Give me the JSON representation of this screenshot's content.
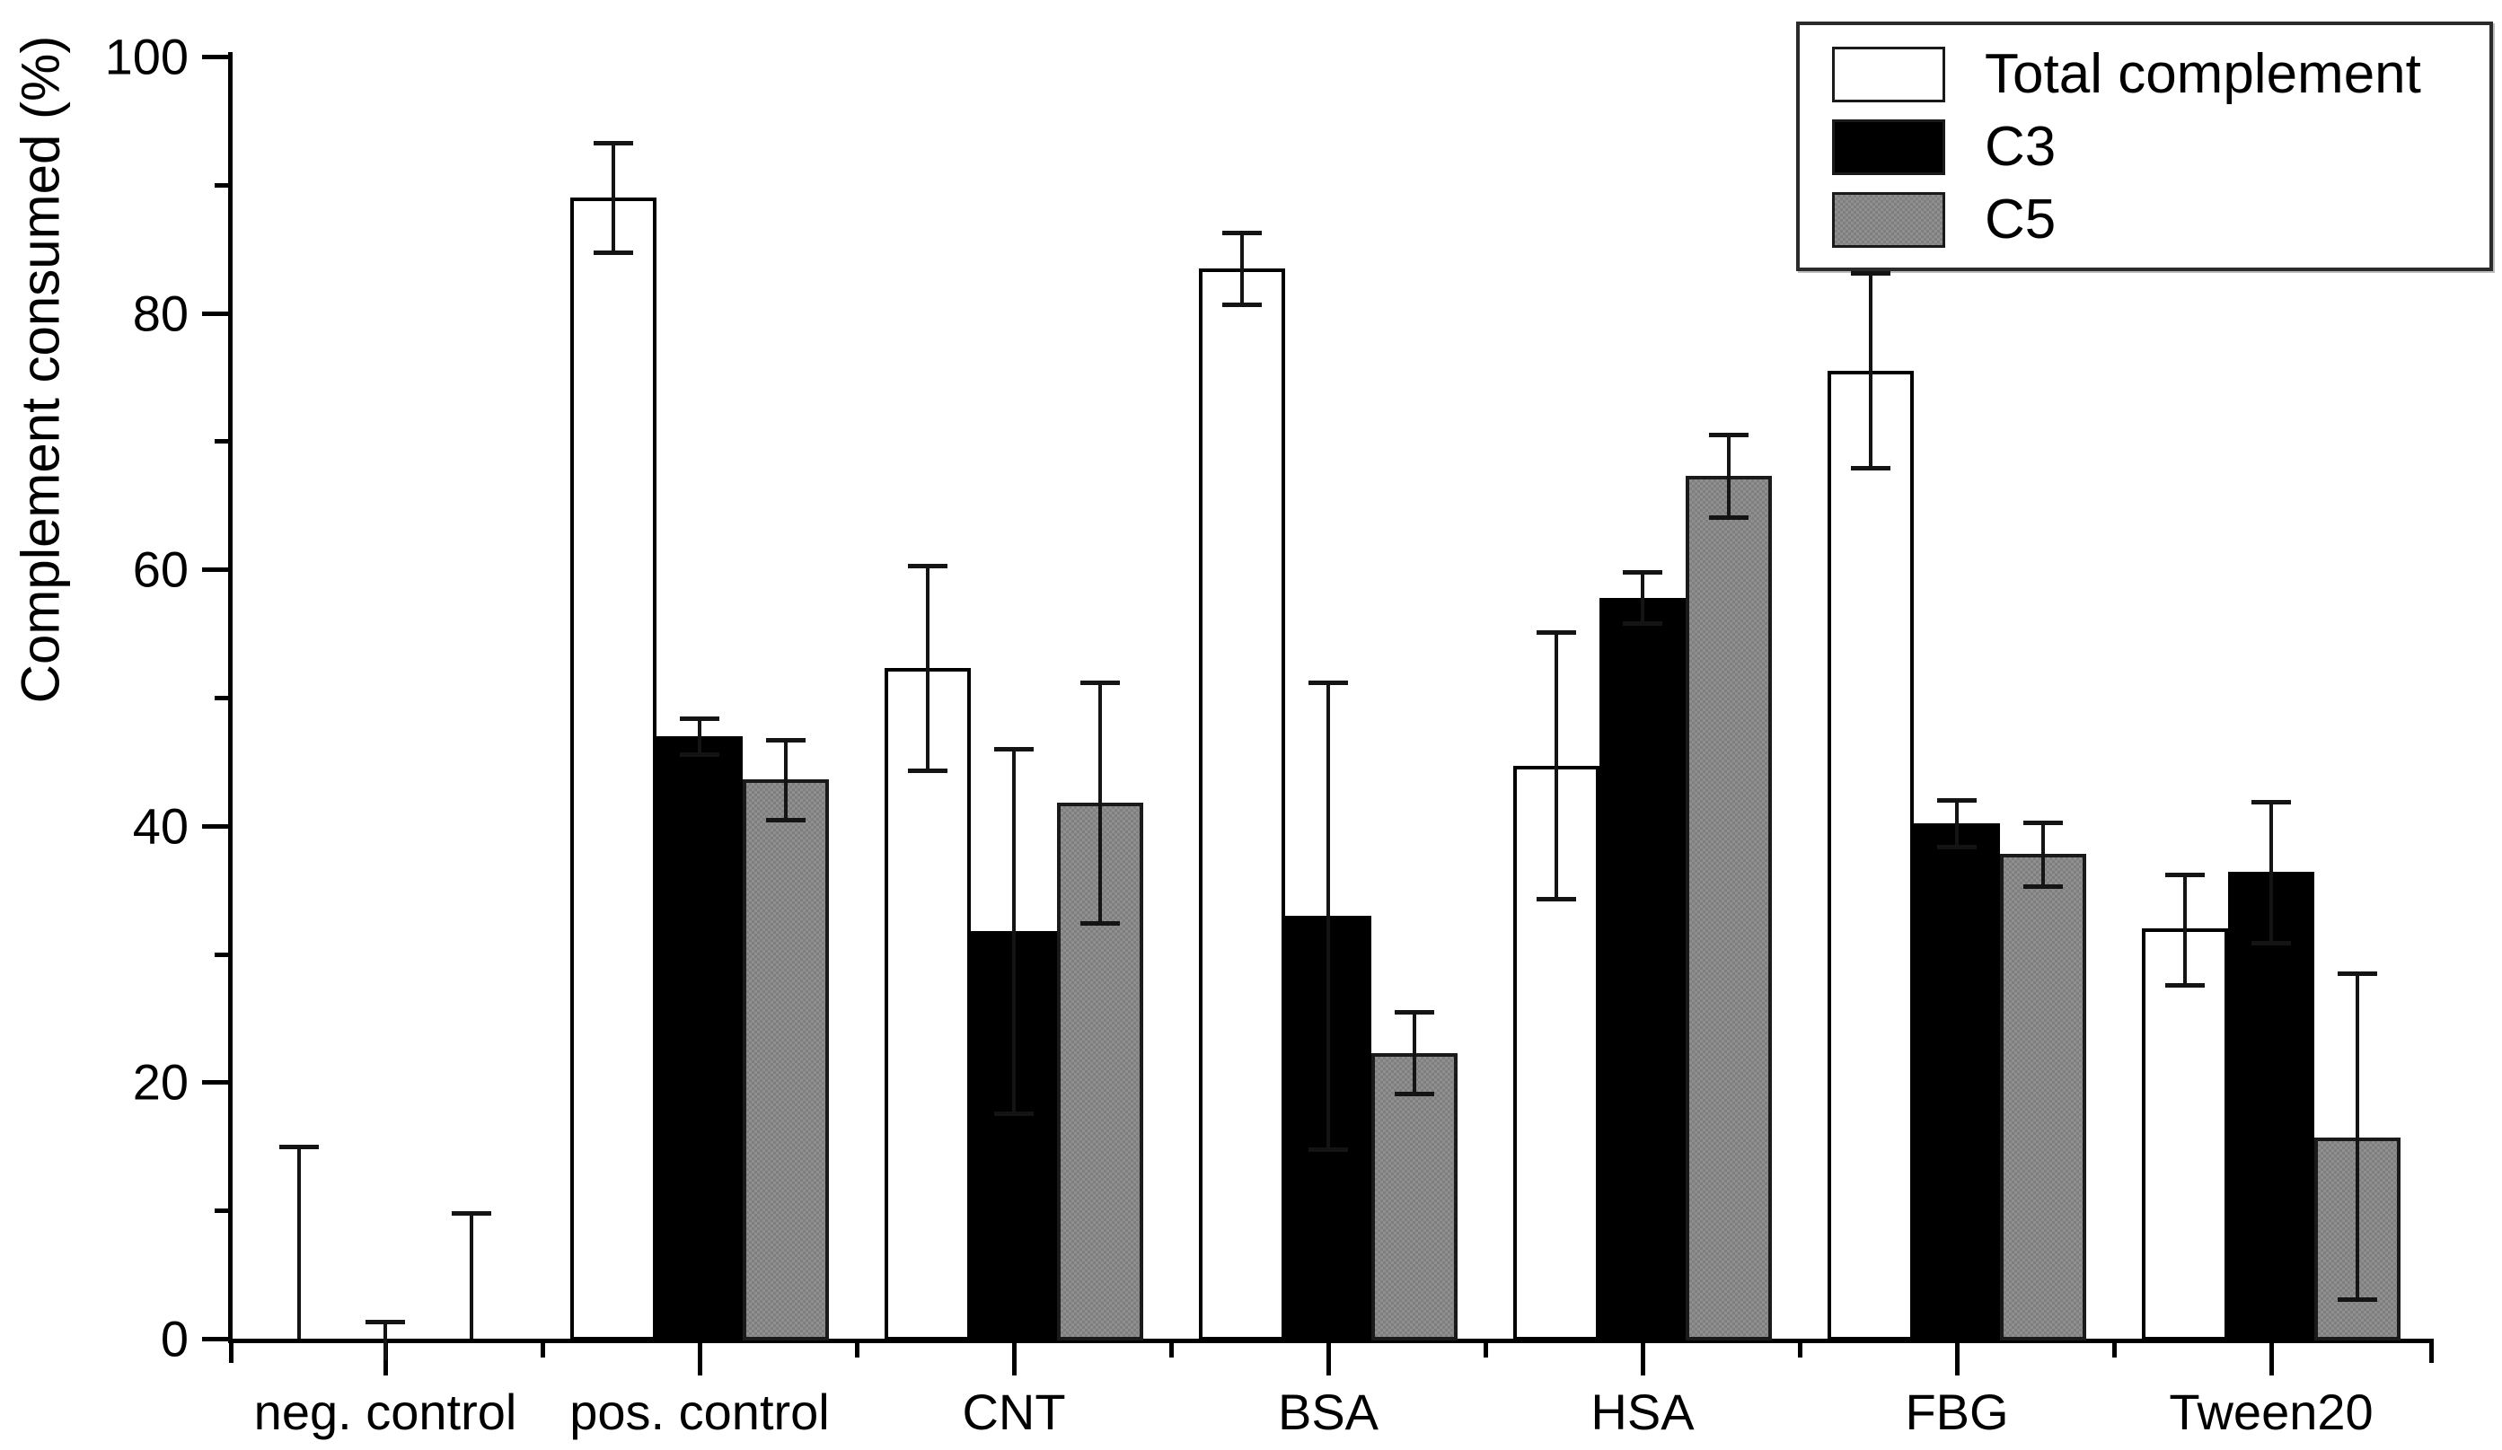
{
  "figure": {
    "background": "#ffffff",
    "axis_color": "#000000",
    "error_bar_color": "#141414"
  },
  "chart_data": {
    "type": "bar",
    "title": "",
    "xlabel": "",
    "ylabel": "Complement consumed (%)",
    "ylim": [
      0,
      100
    ],
    "yticks_major": [
      0,
      20,
      40,
      60,
      80,
      100
    ],
    "yticks_minor": [
      10,
      30,
      50,
      70,
      90
    ],
    "grid": false,
    "legend_position": "top-right",
    "categories": [
      "neg. control",
      "pos. control",
      "CNT",
      "BSA",
      "HSA",
      "FBG",
      "Tween20"
    ],
    "series": [
      {
        "name": "Total complement",
        "fill": "#ffffff",
        "values": [
          0,
          89,
          52.3,
          83.5,
          44.7,
          75.5,
          32
        ],
        "err_up": [
          15,
          4.3,
          8,
          2.8,
          10.4,
          7.6,
          4.2
        ],
        "err_down": [
          0,
          4.3,
          8,
          2.8,
          10.4,
          7.6,
          4.4
        ]
      },
      {
        "name": "C3",
        "fill": "#000000",
        "values": [
          0,
          47,
          31.8,
          33,
          57.8,
          40.2,
          36.4
        ],
        "err_up": [
          1.3,
          1.4,
          14.2,
          18.2,
          2,
          1.8,
          5.5
        ],
        "err_down": [
          1.7,
          1.4,
          14.2,
          18.2,
          2,
          1.8,
          5.5
        ]
      },
      {
        "name": "C5",
        "fill": "#878787",
        "values": [
          0,
          43.6,
          41.8,
          22.3,
          67.3,
          37.8,
          15.7
        ],
        "err_up": [
          9.8,
          3.1,
          9.4,
          3.2,
          3.2,
          2.5,
          12.8
        ],
        "err_down": [
          0,
          3.1,
          9.4,
          3.2,
          3.2,
          2.5,
          12.6
        ]
      }
    ]
  }
}
